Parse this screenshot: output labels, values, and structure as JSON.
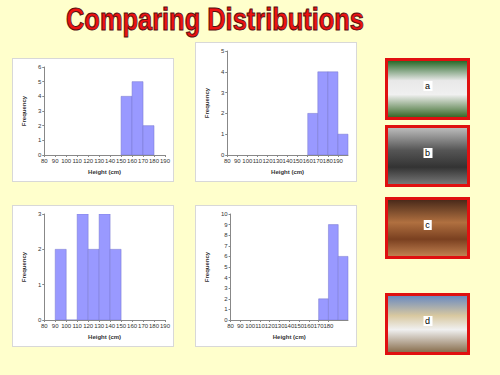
{
  "title": "Comparing Distributions",
  "photo_labels": [
    "a",
    "b",
    "c",
    "d"
  ],
  "chart_data": [
    {
      "type": "histogram",
      "bins": [
        150,
        160,
        170,
        180
      ],
      "values": [
        4,
        5,
        2
      ],
      "color": "#9999ff",
      "xlabel": "Height (cm)",
      "ylabel": "Frequency",
      "xlim": [
        80,
        190
      ],
      "xticks": [
        80,
        90,
        100,
        110,
        120,
        130,
        140,
        150,
        160,
        170,
        180,
        190
      ],
      "ylim": [
        0,
        6
      ],
      "yticks": [
        0,
        1,
        2,
        3,
        4,
        5,
        6
      ],
      "grid": false
    },
    {
      "type": "histogram",
      "bins": [
        160,
        170,
        180,
        190,
        200
      ],
      "values": [
        2,
        4,
        4,
        1
      ],
      "color": "#9999ff",
      "xlabel": "Height (cm)",
      "ylabel": "Frequency",
      "xlim": [
        80,
        200
      ],
      "xticks": [
        80,
        90,
        100,
        110,
        120,
        130,
        140,
        150,
        160,
        170,
        180,
        190
      ],
      "ylim": [
        0,
        5
      ],
      "yticks": [
        0,
        1,
        2,
        3,
        4,
        5
      ],
      "grid": false
    },
    {
      "type": "histogram",
      "bins": [
        90,
        100,
        110,
        120,
        130,
        140,
        150
      ],
      "values": [
        2,
        0,
        3,
        2,
        3,
        2
      ],
      "color": "#9999ff",
      "xlabel": "Height (cm)",
      "ylabel": "Frequency",
      "xlim": [
        80,
        190
      ],
      "xticks": [
        80,
        90,
        100,
        110,
        120,
        130,
        140,
        150,
        160,
        170,
        180,
        190
      ],
      "ylim": [
        0,
        3
      ],
      "yticks": [
        0,
        1,
        2,
        3
      ],
      "grid": false
    },
    {
      "type": "histogram",
      "bins": [
        170,
        180,
        190,
        200
      ],
      "values": [
        2,
        9,
        6
      ],
      "color": "#9999ff",
      "xlabel": "Height (cm)",
      "ylabel": "Frequency",
      "xlim": [
        80,
        200
      ],
      "xticks": [
        80,
        90,
        100,
        110,
        120,
        130,
        140,
        150,
        160,
        170,
        180,
        190
      ],
      "ylim": [
        0,
        10
      ],
      "yticks": [
        0,
        1,
        2,
        3,
        4,
        5,
        6,
        7,
        8,
        9,
        10
      ],
      "grid": false
    }
  ]
}
